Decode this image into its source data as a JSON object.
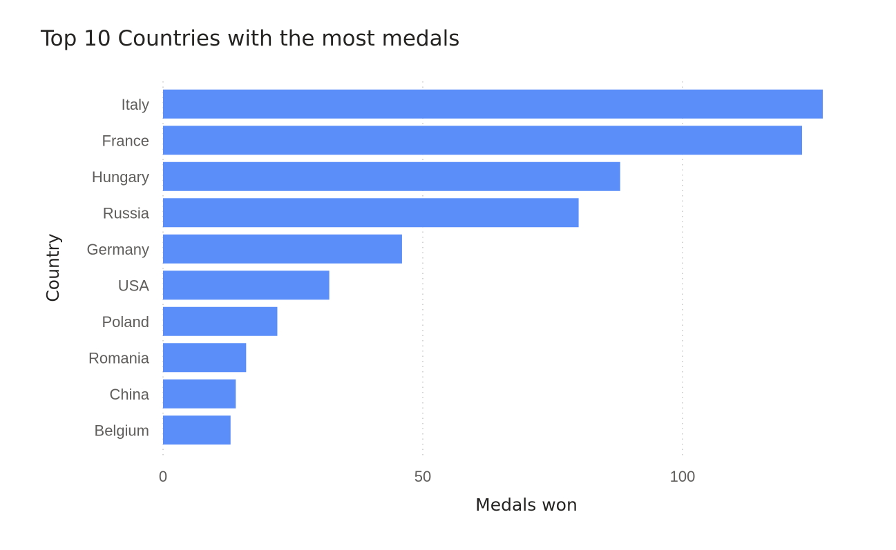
{
  "chart_data": {
    "type": "bar",
    "orientation": "horizontal",
    "title": "Top 10 Countries with the most medals",
    "xlabel": "Medals won",
    "ylabel": "Country",
    "categories": [
      "Italy",
      "France",
      "Hungary",
      "Russia",
      "Germany",
      "USA",
      "Poland",
      "Romania",
      "China",
      "Belgium"
    ],
    "values": [
      127,
      123,
      88,
      80,
      46,
      32,
      22,
      16,
      14,
      13
    ],
    "xlim": [
      0,
      127
    ],
    "xticks": [
      0,
      50,
      100
    ],
    "grid": true,
    "bar_color": "#5b8ef8"
  }
}
